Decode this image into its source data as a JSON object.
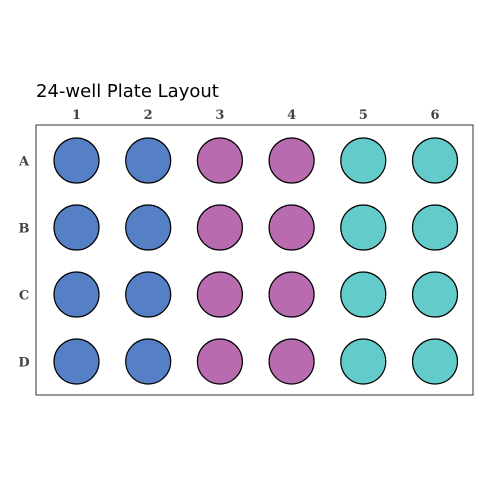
{
  "title": "24-well Plate Layout",
  "plate": {
    "columns": [
      "1",
      "2",
      "3",
      "4",
      "5",
      "6"
    ],
    "rows": [
      "A",
      "B",
      "C",
      "D"
    ],
    "column_colors": [
      "#5680c6",
      "#5680c6",
      "#b86caf",
      "#b86caf",
      "#63cbc9",
      "#63cbc9"
    ]
  }
}
